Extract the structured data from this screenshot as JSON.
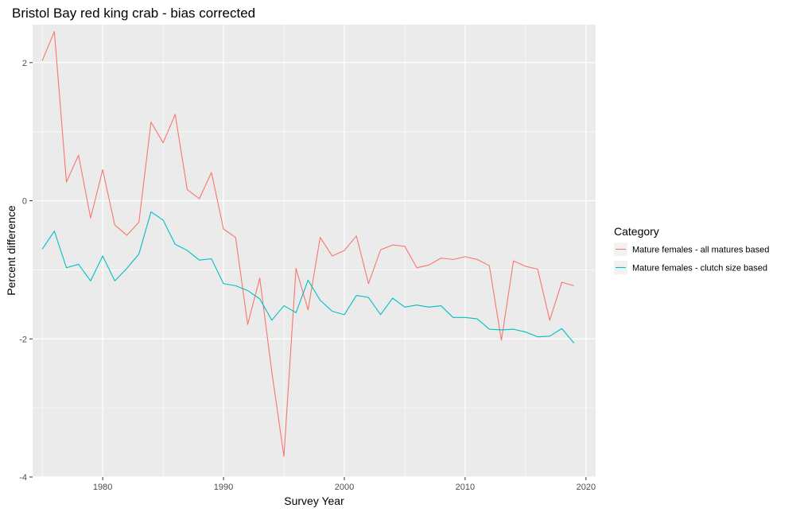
{
  "chart_data": {
    "type": "line",
    "title": "Bristol Bay red king crab - bias corrected",
    "xlabel": "Survey Year",
    "ylabel": "Percent difference",
    "xlim": [
      1974.2,
      2020.8
    ],
    "ylim": [
      -4.0,
      2.55
    ],
    "xticks": [
      1980,
      1990,
      2000,
      2010,
      2020
    ],
    "yticks": [
      -4,
      -2,
      0,
      2
    ],
    "xtick_labels": [
      "1980",
      "1990",
      "2000",
      "2010",
      "2020"
    ],
    "ytick_labels": [
      "-4",
      "-2",
      "0",
      "2"
    ],
    "grid": true,
    "legend": {
      "title": "Category",
      "position": "right"
    },
    "x": [
      1975,
      1976,
      1977,
      1978,
      1979,
      1980,
      1981,
      1982,
      1983,
      1984,
      1985,
      1986,
      1987,
      1988,
      1989,
      1990,
      1991,
      1992,
      1993,
      1994,
      1995,
      1996,
      1997,
      1998,
      1999,
      2000,
      2001,
      2002,
      2003,
      2004,
      2005,
      2006,
      2007,
      2008,
      2009,
      2010,
      2011,
      2012,
      2013,
      2014,
      2015,
      2016,
      2017,
      2018,
      2019
    ],
    "series": [
      {
        "name": "Mature females - all matures based",
        "color": "#F8766D",
        "values": [
          2.03,
          2.45,
          0.27,
          0.66,
          -0.25,
          0.45,
          -0.35,
          -0.5,
          -0.31,
          1.14,
          0.84,
          1.25,
          0.16,
          0.03,
          0.41,
          -0.41,
          -0.53,
          -1.79,
          -1.12,
          -2.48,
          -3.7,
          -0.98,
          -1.58,
          -0.53,
          -0.8,
          -0.72,
          -0.51,
          -1.2,
          -0.71,
          -0.64,
          -0.66,
          -0.97,
          -0.93,
          -0.83,
          -0.85,
          -0.81,
          -0.85,
          -0.94,
          -2.02,
          -0.87,
          -0.95,
          -0.99,
          -1.73,
          -1.18,
          -1.23
        ]
      },
      {
        "name": "Mature females - clutch size based",
        "color": "#00BFC4",
        "values": [
          -0.7,
          -0.44,
          -0.97,
          -0.92,
          -1.16,
          -0.8,
          -1.16,
          -0.98,
          -0.77,
          -0.16,
          -0.28,
          -0.63,
          -0.72,
          -0.86,
          -0.84,
          -1.2,
          -1.23,
          -1.3,
          -1.42,
          -1.73,
          -1.52,
          -1.62,
          -1.15,
          -1.44,
          -1.6,
          -1.65,
          -1.37,
          -1.4,
          -1.65,
          -1.41,
          -1.54,
          -1.51,
          -1.54,
          -1.52,
          -1.69,
          -1.69,
          -1.71,
          -1.86,
          -1.87,
          -1.86,
          -1.9,
          -1.97,
          -1.96,
          -1.85,
          -2.06
        ]
      }
    ]
  }
}
